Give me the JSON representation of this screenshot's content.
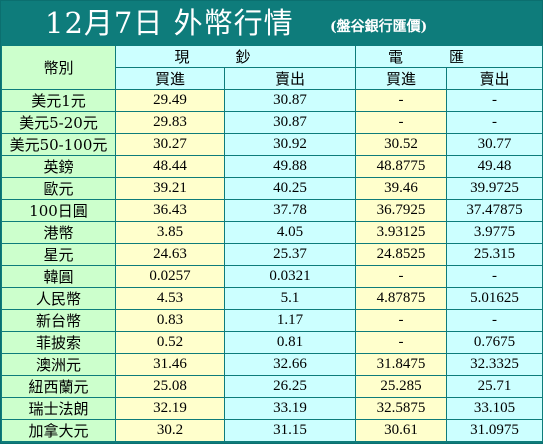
{
  "header": {
    "title": "12月7日 外幣行情",
    "bank": "(盤谷銀行匯價)"
  },
  "table": {
    "corner_label": "幣別",
    "groups": [
      "現鈔",
      "電匯"
    ],
    "subheaders": [
      "買進",
      "賣出",
      "買進",
      "賣出"
    ],
    "rows": [
      {
        "name": "美元1元",
        "cash_buy": "29.49",
        "cash_sell": "30.87",
        "tt_buy": "-",
        "tt_sell": "-"
      },
      {
        "name": "美元5-20元",
        "cash_buy": "29.83",
        "cash_sell": "30.87",
        "tt_buy": "-",
        "tt_sell": "-"
      },
      {
        "name": "美元50-100元",
        "cash_buy": "30.27",
        "cash_sell": "30.92",
        "tt_buy": "30.52",
        "tt_sell": "30.77"
      },
      {
        "name": "英鎊",
        "cash_buy": "48.44",
        "cash_sell": "49.88",
        "tt_buy": "48.8775",
        "tt_sell": "49.48"
      },
      {
        "name": "歐元",
        "cash_buy": "39.21",
        "cash_sell": "40.25",
        "tt_buy": "39.46",
        "tt_sell": "39.9725"
      },
      {
        "name": "100日圓",
        "cash_buy": "36.43",
        "cash_sell": "37.78",
        "tt_buy": "36.7925",
        "tt_sell": "37.47875"
      },
      {
        "name": "港幣",
        "cash_buy": "3.85",
        "cash_sell": "4.05",
        "tt_buy": "3.93125",
        "tt_sell": "3.9775"
      },
      {
        "name": "星元",
        "cash_buy": "24.63",
        "cash_sell": "25.37",
        "tt_buy": "24.8525",
        "tt_sell": "25.315"
      },
      {
        "name": "韓圓",
        "cash_buy": "0.0257",
        "cash_sell": "0.0321",
        "tt_buy": "-",
        "tt_sell": "-"
      },
      {
        "name": "人民幣",
        "cash_buy": "4.53",
        "cash_sell": "5.1",
        "tt_buy": "4.87875",
        "tt_sell": "5.01625"
      },
      {
        "name": "新台幣",
        "cash_buy": "0.83",
        "cash_sell": "1.17",
        "tt_buy": "-",
        "tt_sell": "-"
      },
      {
        "name": "菲披索",
        "cash_buy": "0.52",
        "cash_sell": "0.81",
        "tt_buy": "-",
        "tt_sell": "0.7675"
      },
      {
        "name": "澳洲元",
        "cash_buy": "31.46",
        "cash_sell": "32.66",
        "tt_buy": "31.8475",
        "tt_sell": "32.3325"
      },
      {
        "name": "紐西蘭元",
        "cash_buy": "25.08",
        "cash_sell": "26.25",
        "tt_buy": "25.285",
        "tt_sell": "25.71"
      },
      {
        "name": "瑞士法朗",
        "cash_buy": "32.19",
        "cash_sell": "33.19",
        "tt_buy": "32.5875",
        "tt_sell": "33.105"
      },
      {
        "name": "加拿大元",
        "cash_buy": "30.2",
        "cash_sell": "31.15",
        "tt_buy": "30.61",
        "tt_sell": "31.0975"
      }
    ]
  },
  "colors": {
    "frame": "#0e7c7b",
    "name_cells": "#ccffcc",
    "buy_cells": "#ffffcc",
    "sell_cells": "#ccffff"
  }
}
